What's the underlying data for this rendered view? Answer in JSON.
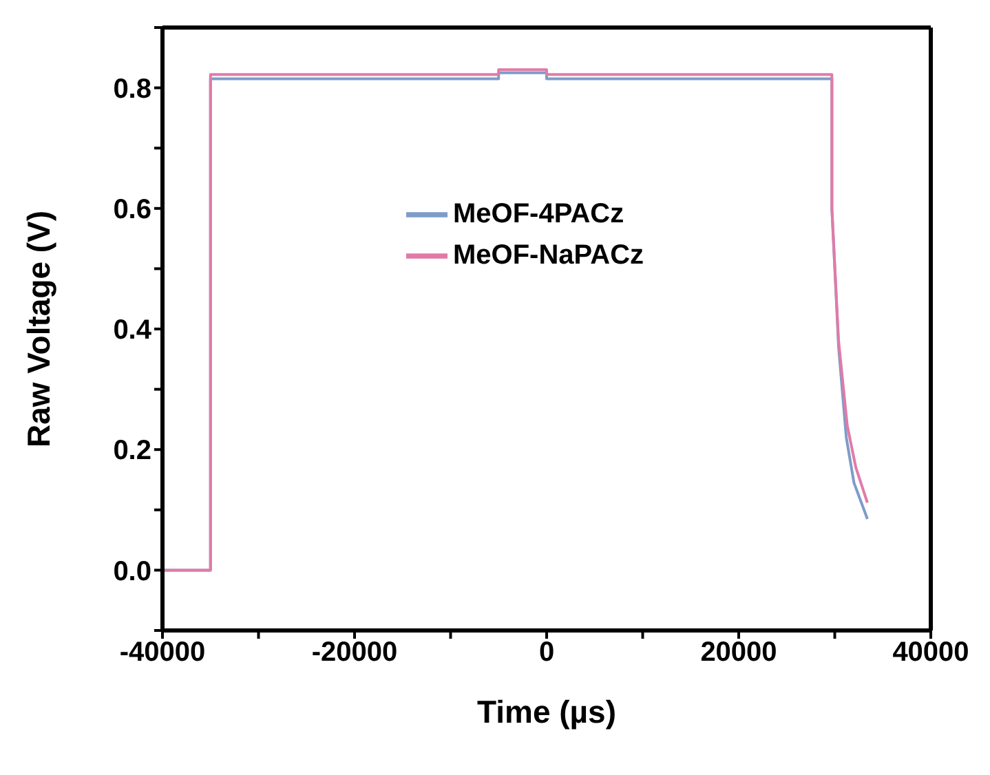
{
  "chart_data": {
    "type": "line",
    "xlabel": "Time (µs)",
    "ylabel": "Raw Voltage (V)",
    "xlim": [
      -40000,
      40000
    ],
    "ylim": [
      -0.1,
      0.9
    ],
    "xticks": [
      -40000,
      {
        "value": -30000,
        "label": null
      },
      -20000,
      {
        "value": -10000,
        "label": null
      },
      0,
      {
        "value": 10000,
        "label": null
      },
      20000,
      {
        "value": 30000,
        "label": null
      },
      40000
    ],
    "yticks": [
      {
        "value": -0.1,
        "label": null
      },
      {
        "value": 0,
        "label": "0.0"
      },
      {
        "value": 0.1,
        "label": null
      },
      0.2,
      {
        "value": 0.3,
        "label": null
      },
      0.4,
      {
        "value": 0.5,
        "label": null
      },
      0.6,
      {
        "value": 0.7,
        "label": null
      },
      0.8,
      {
        "value": 0.9,
        "label": null
      }
    ],
    "grid": false,
    "legend": "top",
    "marker": "none",
    "line_style": "solid",
    "series": [
      {
        "name": "MeOF-4PACz",
        "color": "#7f9cc8",
        "x": [
          -40000,
          -35000,
          -35000,
          -5000,
          -5000,
          0,
          0,
          29700,
          29700,
          30400,
          31200,
          32000,
          33400
        ],
        "values": [
          0,
          0,
          0.815,
          0.815,
          0.825,
          0.825,
          0.815,
          0.815,
          0.6,
          0.37,
          0.22,
          0.145,
          0.085
        ]
      },
      {
        "name": "MeOF-NaPACz",
        "color": "#e07ba8",
        "x": [
          -40000,
          -35000,
          -35000,
          -5000,
          -5000,
          0,
          0,
          29700,
          29700,
          30400,
          31300,
          32200,
          33400
        ],
        "values": [
          0,
          0,
          0.822,
          0.822,
          0.83,
          0.83,
          0.822,
          0.822,
          0.6,
          0.38,
          0.24,
          0.17,
          0.112
        ]
      }
    ]
  }
}
